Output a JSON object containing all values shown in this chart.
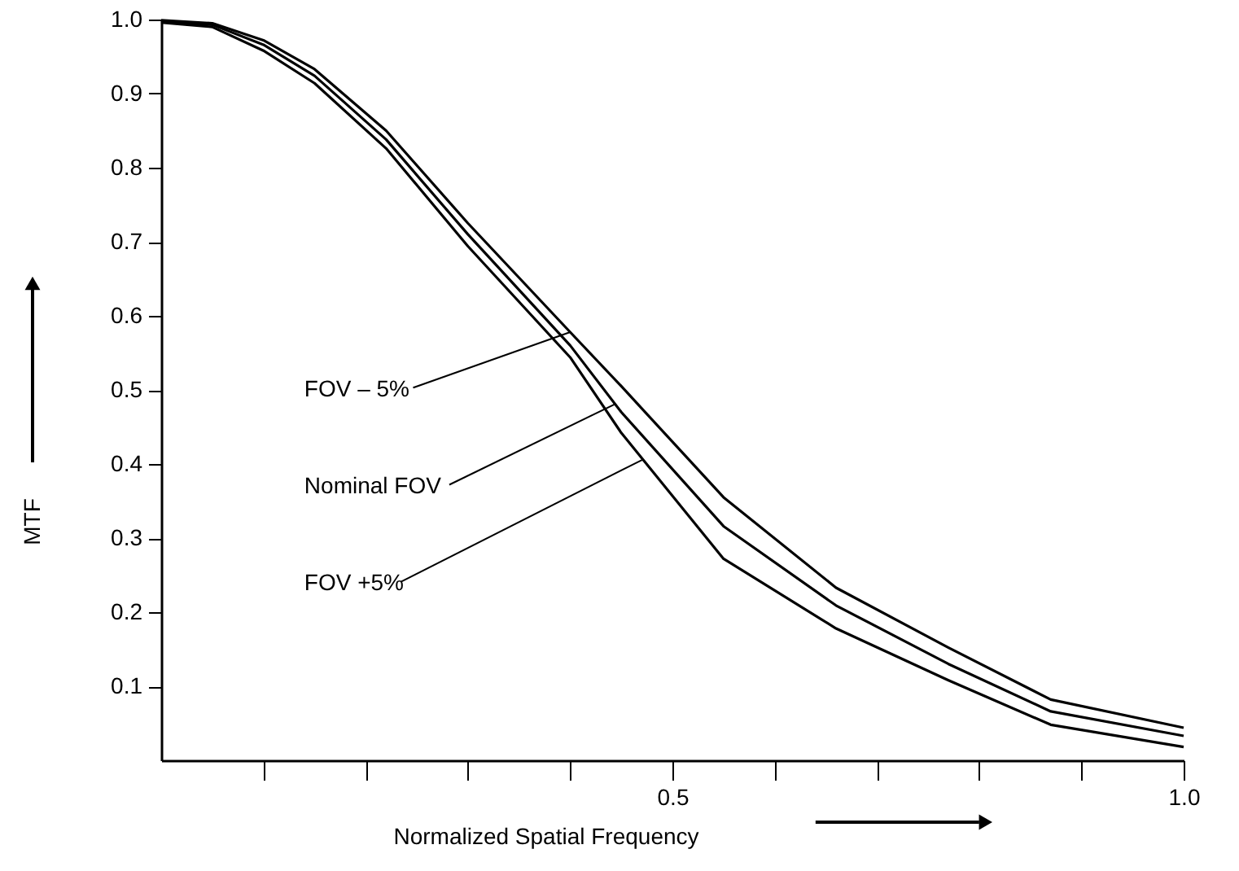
{
  "chart_data": {
    "type": "line",
    "xlabel": "Normalized Spatial Frequency",
    "ylabel": "MTF",
    "x": [
      0,
      0.05,
      0.1,
      0.15,
      0.22,
      0.3,
      0.4,
      0.45,
      0.55,
      0.66,
      0.77,
      0.87,
      1.0
    ],
    "series": [
      {
        "color": "#000000",
        "values": [
          0.999,
          0.995,
          0.972,
          0.933,
          0.85,
          0.725,
          0.578,
          0.505,
          0.355,
          0.233,
          0.152,
          0.082,
          0.044
        ]
      },
      {
        "color": "#000000",
        "values": [
          0.998,
          0.993,
          0.966,
          0.924,
          0.838,
          0.71,
          0.56,
          0.47,
          0.316,
          0.209,
          0.13,
          0.066,
          0.033
        ]
      },
      {
        "color": "#000000",
        "values": [
          0.996,
          0.99,
          0.958,
          0.914,
          0.826,
          0.694,
          0.544,
          0.442,
          0.272,
          0.178,
          0.108,
          0.048,
          0.018
        ]
      }
    ],
    "annotations": [
      {
        "text": "FOV – 5%",
        "x": 0.4,
        "y": 0.578
      },
      {
        "text": "Nominal FOV",
        "x": 0.444,
        "y": 0.481
      },
      {
        "text": "FOV +5%",
        "x": 0.471,
        "y": 0.406
      }
    ],
    "xlim": [
      0,
      1.0
    ],
    "ylim": [
      0,
      1.0
    ],
    "xticks": [
      {
        "value": 0.1,
        "label": null
      },
      {
        "value": 0.2,
        "label": null
      },
      {
        "value": 0.3,
        "label": null
      },
      {
        "value": 0.4,
        "label": null
      },
      0.5,
      {
        "value": 0.6,
        "label": null
      },
      {
        "value": 0.7,
        "label": null
      },
      {
        "value": 0.8,
        "label": null
      },
      {
        "value": 0.9,
        "label": null
      },
      {
        "value": 1.0,
        "label": "1.0"
      }
    ],
    "yticks": [
      0.1,
      0.2,
      0.3,
      0.4,
      0.5,
      0.6,
      0.7,
      0.8,
      0.9,
      {
        "value": 1.0,
        "label": "1.0"
      }
    ],
    "grid": false,
    "marker": "none",
    "line_style": "solid"
  }
}
